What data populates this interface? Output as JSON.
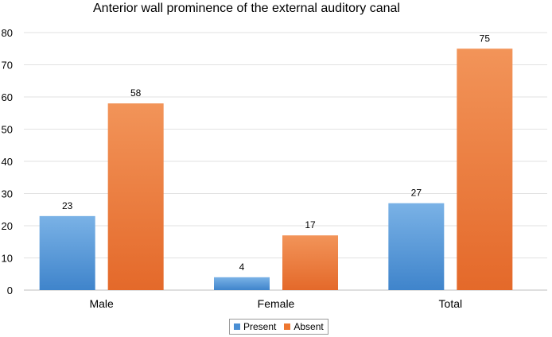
{
  "chart_data": {
    "type": "bar",
    "title": "Anterior wall prominence of the external auditory canal",
    "categories": [
      "Male",
      "Female",
      "Total"
    ],
    "series": [
      {
        "name": "Present",
        "values": [
          23,
          4,
          27
        ],
        "color": "#4a8fd4"
      },
      {
        "name": "Absent",
        "values": [
          58,
          17,
          75
        ],
        "color": "#ee7730"
      }
    ],
    "ylim": [
      0,
      80
    ],
    "yticks": [
      0,
      10,
      20,
      30,
      40,
      50,
      60,
      70,
      80
    ],
    "grid": true,
    "legend_position": "bottom"
  }
}
